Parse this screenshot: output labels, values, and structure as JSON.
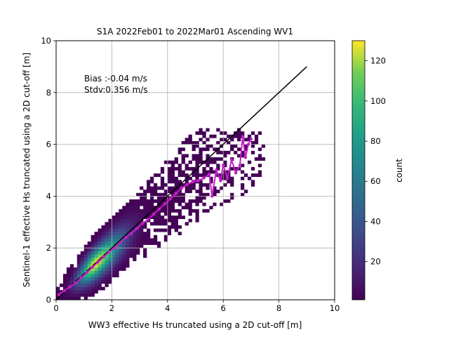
{
  "chart_data": {
    "type": "heatmap",
    "title": "S1A 2022Feb01 to 2022Mar01 Ascending WV1",
    "xlabel": "WW3 effective Hs truncated using a 2D cut-off [m]",
    "ylabel": "Sentinel-1 effective Hs truncated using a 2D cut-off [m]",
    "xlim": [
      0,
      10
    ],
    "ylim": [
      0,
      10
    ],
    "xticks": [
      "0",
      "2",
      "4",
      "6",
      "8",
      "10"
    ],
    "yticks": [
      "0",
      "2",
      "4",
      "6",
      "8",
      "10"
    ],
    "grid": true,
    "annotation": [
      "Bias :-0.04 m/s",
      "Stdv:0.356 m/s"
    ],
    "colorbar": {
      "label": "count",
      "range": [
        1,
        130
      ],
      "ticks": [
        "20",
        "40",
        "60",
        "80",
        "100",
        "120"
      ],
      "colormap": "viridis"
    },
    "density": {
      "bin_width": 0.125,
      "ridge": [
        [
          0,
          0.05
        ],
        [
          2,
          1.95
        ],
        [
          4,
          3.85
        ],
        [
          6,
          5.65
        ]
      ],
      "peak_count": 130,
      "peak_at": [
        1.4,
        1.4
      ]
    },
    "identity_line": {
      "x": [
        0,
        9
      ],
      "y": [
        0,
        9
      ],
      "color": "#000000"
    },
    "binned_mean": {
      "color": "#c81ec8",
      "x": [
        0.1,
        0.3,
        0.5,
        0.7,
        0.9,
        1.1,
        1.3,
        1.5,
        1.7,
        1.9,
        2.1,
        2.3,
        2.5,
        2.7,
        2.9,
        3.1,
        3.3,
        3.5,
        3.7,
        3.9,
        4.1,
        4.3,
        4.5,
        4.7,
        4.9,
        5.1,
        5.3,
        5.5,
        5.6,
        5.75,
        5.9,
        6.0,
        6.15,
        6.3,
        6.45,
        6.6,
        6.7,
        6.8,
        6.9,
        7.0
      ],
      "y": [
        0.2,
        0.35,
        0.5,
        0.65,
        0.85,
        1.05,
        1.25,
        1.45,
        1.65,
        1.85,
        2.0,
        2.2,
        2.4,
        2.55,
        2.75,
        2.95,
        3.1,
        3.3,
        3.5,
        3.7,
        3.9,
        4.1,
        4.3,
        4.45,
        4.55,
        4.6,
        4.7,
        4.85,
        4.0,
        5.0,
        4.6,
        5.2,
        4.7,
        5.4,
        4.9,
        5.2,
        6.3,
        5.5,
        6.0,
        6.2
      ]
    }
  }
}
